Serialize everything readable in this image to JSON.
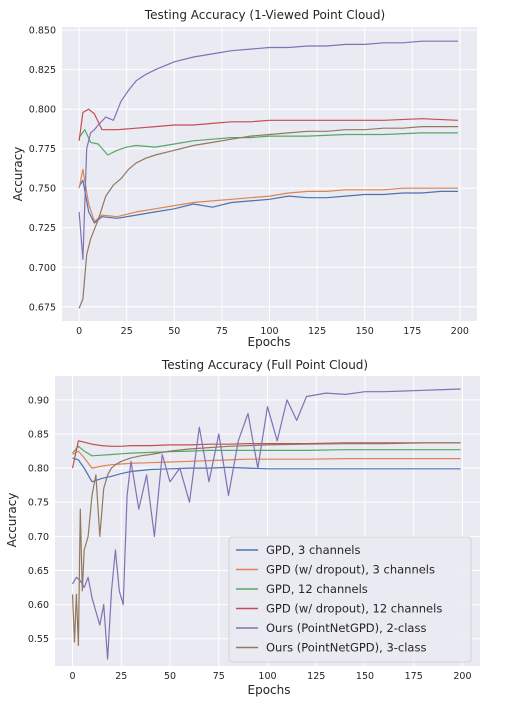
{
  "chart_data": [
    {
      "type": "line",
      "title": "Testing Accuracy (1-Viewed Point Cloud)",
      "xlabel": "Epochs",
      "ylabel": "Accuracy",
      "xlim": [
        -9,
        209
      ],
      "ylim": [
        0.666,
        0.852
      ],
      "xticks": [
        0,
        25,
        50,
        75,
        100,
        125,
        150,
        175,
        200
      ],
      "yticks": [
        0.675,
        0.7,
        0.725,
        0.75,
        0.775,
        0.8,
        0.825,
        0.85
      ],
      "ytick_labels": [
        "0.675",
        "0.700",
        "0.725",
        "0.750",
        "0.775",
        "0.800",
        "0.825",
        "0.850"
      ],
      "grid": true,
      "legend": null,
      "series": [
        {
          "name": "GPD, 3 channels",
          "color": "#4c72b0",
          "x": [
            0,
            2,
            5,
            8,
            12,
            20,
            30,
            40,
            50,
            60,
            70,
            80,
            90,
            100,
            110,
            120,
            130,
            140,
            150,
            160,
            170,
            180,
            190,
            199
          ],
          "y": [
            0.751,
            0.755,
            0.735,
            0.728,
            0.732,
            0.731,
            0.733,
            0.735,
            0.737,
            0.74,
            0.738,
            0.741,
            0.742,
            0.743,
            0.745,
            0.744,
            0.744,
            0.745,
            0.746,
            0.746,
            0.747,
            0.747,
            0.748,
            0.748
          ]
        },
        {
          "name": "GPD (w/ dropout), 3 channels",
          "color": "#dd8452",
          "x": [
            0,
            2,
            5,
            8,
            12,
            20,
            30,
            40,
            50,
            60,
            70,
            80,
            90,
            100,
            110,
            120,
            130,
            140,
            150,
            160,
            170,
            180,
            190,
            199
          ],
          "y": [
            0.75,
            0.762,
            0.74,
            0.729,
            0.733,
            0.732,
            0.735,
            0.737,
            0.739,
            0.741,
            0.742,
            0.743,
            0.744,
            0.745,
            0.747,
            0.748,
            0.748,
            0.749,
            0.749,
            0.749,
            0.75,
            0.75,
            0.75,
            0.75
          ]
        },
        {
          "name": "GPD, 12 channels",
          "color": "#55a868",
          "x": [
            0,
            3,
            6,
            10,
            15,
            20,
            25,
            30,
            40,
            50,
            60,
            70,
            80,
            90,
            100,
            120,
            140,
            160,
            180,
            199
          ],
          "y": [
            0.782,
            0.787,
            0.779,
            0.778,
            0.771,
            0.774,
            0.776,
            0.777,
            0.776,
            0.778,
            0.78,
            0.781,
            0.782,
            0.782,
            0.783,
            0.783,
            0.784,
            0.784,
            0.785,
            0.785
          ]
        },
        {
          "name": "GPD (w/ dropout), 12 channels",
          "color": "#c44e52",
          "x": [
            0,
            2,
            5,
            8,
            12,
            20,
            30,
            40,
            50,
            60,
            70,
            80,
            90,
            100,
            120,
            140,
            160,
            180,
            199
          ],
          "y": [
            0.78,
            0.798,
            0.8,
            0.797,
            0.787,
            0.787,
            0.788,
            0.789,
            0.79,
            0.79,
            0.791,
            0.792,
            0.792,
            0.793,
            0.793,
            0.793,
            0.793,
            0.794,
            0.793
          ]
        },
        {
          "name": "Ours (PointNetGPD), 2-class",
          "color": "#8172b3",
          "x": [
            0,
            2,
            4,
            6,
            8,
            10,
            14,
            18,
            22,
            26,
            30,
            35,
            40,
            50,
            60,
            70,
            80,
            90,
            100,
            110,
            120,
            130,
            140,
            150,
            160,
            170,
            180,
            190,
            199
          ],
          "y": [
            0.735,
            0.705,
            0.775,
            0.785,
            0.787,
            0.79,
            0.795,
            0.793,
            0.805,
            0.812,
            0.818,
            0.822,
            0.825,
            0.83,
            0.833,
            0.835,
            0.837,
            0.838,
            0.839,
            0.839,
            0.84,
            0.84,
            0.841,
            0.841,
            0.842,
            0.842,
            0.843,
            0.843,
            0.843
          ]
        },
        {
          "name": "Ours (PointNetGPD), 3-class",
          "color": "#937860",
          "x": [
            0,
            2,
            4,
            6,
            8,
            10,
            14,
            18,
            22,
            26,
            30,
            35,
            40,
            50,
            60,
            70,
            80,
            90,
            100,
            110,
            120,
            130,
            140,
            150,
            160,
            170,
            180,
            190,
            199
          ],
          "y": [
            0.674,
            0.68,
            0.708,
            0.718,
            0.724,
            0.73,
            0.745,
            0.752,
            0.756,
            0.762,
            0.766,
            0.769,
            0.771,
            0.774,
            0.777,
            0.779,
            0.781,
            0.783,
            0.784,
            0.785,
            0.786,
            0.786,
            0.787,
            0.787,
            0.788,
            0.788,
            0.789,
            0.789,
            0.789
          ]
        }
      ]
    },
    {
      "type": "line",
      "title": "Testing Accuracy (Full Point Cloud)",
      "xlabel": "Epochs",
      "ylabel": "Accuracy",
      "xlim": [
        -9,
        209
      ],
      "ylim": [
        0.51,
        0.935
      ],
      "xticks": [
        0,
        25,
        50,
        75,
        100,
        125,
        150,
        175,
        200
      ],
      "yticks": [
        0.55,
        0.6,
        0.65,
        0.7,
        0.75,
        0.8,
        0.85,
        0.9
      ],
      "ytick_labels": [
        "0.55",
        "0.60",
        "0.65",
        "0.70",
        "0.75",
        "0.80",
        "0.85",
        "0.90"
      ],
      "grid": true,
      "legend": "lower-right",
      "series": [
        {
          "name": "GPD, 3 channels",
          "color": "#4c72b0",
          "x": [
            0,
            3,
            6,
            10,
            15,
            20,
            25,
            30,
            40,
            50,
            60,
            70,
            80,
            90,
            100,
            120,
            140,
            160,
            180,
            199
          ],
          "y": [
            0.815,
            0.812,
            0.8,
            0.78,
            0.785,
            0.788,
            0.792,
            0.795,
            0.798,
            0.799,
            0.8,
            0.8,
            0.801,
            0.8,
            0.799,
            0.799,
            0.799,
            0.799,
            0.799,
            0.799
          ]
        },
        {
          "name": "GPD (w/ dropout), 3 channels",
          "color": "#dd8452",
          "x": [
            0,
            3,
            6,
            10,
            15,
            20,
            25,
            30,
            40,
            50,
            60,
            70,
            80,
            90,
            100,
            120,
            140,
            160,
            180,
            199
          ],
          "y": [
            0.82,
            0.825,
            0.815,
            0.8,
            0.803,
            0.805,
            0.806,
            0.807,
            0.808,
            0.809,
            0.81,
            0.811,
            0.812,
            0.813,
            0.813,
            0.813,
            0.814,
            0.814,
            0.814,
            0.814
          ]
        },
        {
          "name": "GPD, 12 channels",
          "color": "#55a868",
          "x": [
            0,
            3,
            6,
            10,
            15,
            20,
            25,
            30,
            40,
            50,
            60,
            70,
            80,
            90,
            100,
            120,
            140,
            160,
            180,
            199
          ],
          "y": [
            0.822,
            0.832,
            0.825,
            0.818,
            0.819,
            0.82,
            0.821,
            0.822,
            0.823,
            0.824,
            0.825,
            0.826,
            0.826,
            0.826,
            0.826,
            0.826,
            0.827,
            0.827,
            0.827,
            0.827
          ]
        },
        {
          "name": "GPD (w/ dropout), 12 channels",
          "color": "#c44e52",
          "x": [
            0,
            3,
            6,
            10,
            15,
            20,
            25,
            30,
            40,
            50,
            60,
            70,
            80,
            90,
            100,
            120,
            140,
            160,
            180,
            199
          ],
          "y": [
            0.8,
            0.84,
            0.838,
            0.835,
            0.833,
            0.832,
            0.832,
            0.833,
            0.833,
            0.834,
            0.834,
            0.835,
            0.835,
            0.836,
            0.836,
            0.836,
            0.837,
            0.837,
            0.837,
            0.837
          ]
        },
        {
          "name": "Ours (PointNetGPD), 2-class",
          "color": "#8172b3",
          "x": [
            0,
            2,
            4,
            6,
            8,
            10,
            12,
            14,
            16,
            18,
            20,
            22,
            24,
            26,
            28,
            30,
            34,
            38,
            42,
            46,
            50,
            55,
            60,
            65,
            70,
            75,
            80,
            85,
            90,
            95,
            100,
            105,
            110,
            115,
            120,
            130,
            140,
            150,
            160,
            170,
            180,
            190,
            199
          ],
          "y": [
            0.63,
            0.64,
            0.635,
            0.625,
            0.64,
            0.61,
            0.59,
            0.57,
            0.6,
            0.52,
            0.62,
            0.68,
            0.62,
            0.6,
            0.76,
            0.81,
            0.74,
            0.79,
            0.7,
            0.82,
            0.78,
            0.8,
            0.75,
            0.86,
            0.78,
            0.85,
            0.76,
            0.84,
            0.88,
            0.8,
            0.89,
            0.84,
            0.9,
            0.87,
            0.905,
            0.91,
            0.908,
            0.912,
            0.912,
            0.913,
            0.914,
            0.915,
            0.916
          ]
        },
        {
          "name": "Ours (PointNetGPD), 3-class",
          "color": "#937860",
          "x": [
            0,
            1,
            2,
            3,
            4,
            5,
            6,
            8,
            10,
            12,
            14,
            16,
            18,
            20,
            22,
            25,
            30,
            35,
            40,
            50,
            60,
            70,
            80,
            90,
            100,
            120,
            140,
            160,
            180,
            199
          ],
          "y": [
            0.615,
            0.545,
            0.615,
            0.54,
            0.74,
            0.62,
            0.68,
            0.7,
            0.76,
            0.79,
            0.7,
            0.77,
            0.79,
            0.8,
            0.805,
            0.81,
            0.815,
            0.818,
            0.82,
            0.825,
            0.828,
            0.83,
            0.832,
            0.833,
            0.834,
            0.835,
            0.836,
            0.836,
            0.837,
            0.837
          ]
        }
      ]
    }
  ]
}
